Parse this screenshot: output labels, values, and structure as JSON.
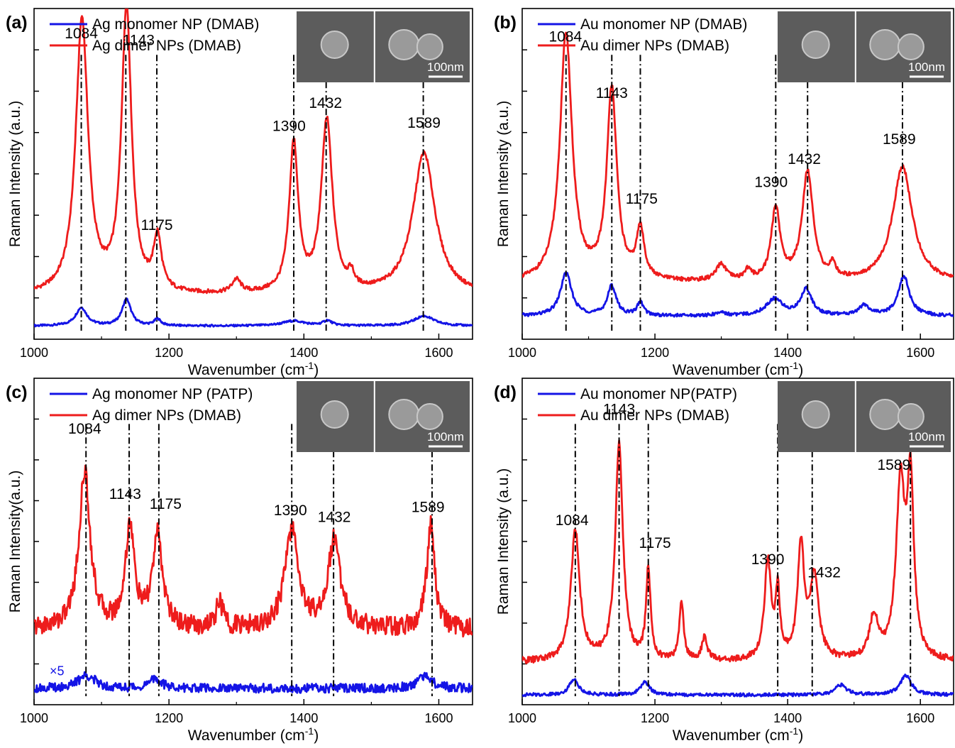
{
  "colors": {
    "monomer": "#1414e6",
    "dimer": "#ee1c1c",
    "axis": "#000000",
    "sem_bg": "#5c5c5c",
    "sem_particle": "#9a9a9a"
  },
  "chart_data": [
    {
      "panel": "(a)",
      "type": "line",
      "xlabel": "Wavenumber (cm-1)",
      "ylabel": "Raman Intensity (a.u.)",
      "xlim": [
        1000,
        1650
      ],
      "xticks": [
        "1000",
        "1200",
        "1400",
        "1600"
      ],
      "series": [
        {
          "name": "Ag monomer NP (DMAB)",
          "color": "#1414e6",
          "baseline": 0.04,
          "noise": 0.003,
          "peaks": [
            [
              1070,
              0.055,
              10
            ],
            [
              1137,
              0.08,
              8
            ],
            [
              1183,
              0.02,
              6
            ],
            [
              1385,
              0.015,
              20
            ],
            [
              1435,
              0.015,
              8
            ],
            [
              1578,
              0.03,
              18
            ]
          ]
        },
        {
          "name": "Ag dimer NPs (DMAB)",
          "color": "#ee1c1c",
          "baseline": 0.13,
          "noise": 0.006,
          "peaks": [
            [
              1071,
              0.83,
              11
            ],
            [
              1137,
              0.86,
              9
            ],
            [
              1183,
              0.16,
              7
            ],
            [
              1300,
              0.04,
              8
            ],
            [
              1385,
              0.45,
              8
            ],
            [
              1434,
              0.52,
              10
            ],
            [
              1470,
              0.04,
              5
            ],
            [
              1578,
              0.43,
              20
            ]
          ]
        }
      ],
      "peak_labels": [
        {
          "text": "1084",
          "x": 1070,
          "y": 0.91
        },
        {
          "text": "1143",
          "x": 1155,
          "y": 0.89
        },
        {
          "text": "1175",
          "x": 1182,
          "y": 0.33
        },
        {
          "text": "1390",
          "x": 1378,
          "y": 0.63
        },
        {
          "text": "1432",
          "x": 1432,
          "y": 0.7
        },
        {
          "text": "1589",
          "x": 1578,
          "y": 0.64
        }
      ],
      "dashed_lines": [
        1070,
        1136,
        1182,
        1385,
        1433,
        1577
      ],
      "sem": {
        "scale_label": "100nm"
      }
    },
    {
      "panel": "(b)",
      "type": "line",
      "xlabel": "Wavenumber (cm-1)",
      "ylabel": "Raman Intensity (a.u.)",
      "xlim": [
        1000,
        1650
      ],
      "xticks": [
        "1000",
        "1200",
        "1400",
        "1600"
      ],
      "series": [
        {
          "name": "Au monomer NP (DMAB)",
          "color": "#1414e6",
          "baseline": 0.07,
          "noise": 0.005,
          "peaks": [
            [
              1066,
              0.13,
              10
            ],
            [
              1135,
              0.09,
              8
            ],
            [
              1178,
              0.04,
              6
            ],
            [
              1300,
              0.01,
              8
            ],
            [
              1380,
              0.05,
              15
            ],
            [
              1428,
              0.08,
              10
            ],
            [
              1515,
              0.03,
              10
            ],
            [
              1575,
              0.12,
              10
            ]
          ]
        },
        {
          "name": "Au dimer NPs (DMAB)",
          "color": "#ee1c1c",
          "baseline": 0.17,
          "noise": 0.006,
          "peaks": [
            [
              1066,
              0.75,
              11
            ],
            [
              1135,
              0.58,
              9
            ],
            [
              1178,
              0.15,
              7
            ],
            [
              1300,
              0.05,
              9
            ],
            [
              1340,
              0.03,
              6
            ],
            [
              1382,
              0.22,
              8
            ],
            [
              1430,
              0.33,
              10
            ],
            [
              1468,
              0.04,
              5
            ],
            [
              1573,
              0.35,
              18
            ]
          ]
        }
      ],
      "peak_labels": [
        {
          "text": "1084",
          "x": 1065,
          "y": 0.9
        },
        {
          "text": "1143",
          "x": 1135,
          "y": 0.73
        },
        {
          "text": "1175",
          "x": 1180,
          "y": 0.41
        },
        {
          "text": "1390",
          "x": 1375,
          "y": 0.46
        },
        {
          "text": "1432",
          "x": 1425,
          "y": 0.53
        },
        {
          "text": "1589",
          "x": 1568,
          "y": 0.59
        }
      ],
      "dashed_lines": [
        1066,
        1135,
        1178,
        1382,
        1430,
        1573
      ],
      "sem": {
        "scale_label": "100nm"
      }
    },
    {
      "panel": "(c)",
      "type": "line",
      "xlabel": "Wavenumber (cm-1)",
      "ylabel": "Raman Intensity(a.u.)",
      "xlim": [
        1000,
        1650
      ],
      "xticks": [
        "1000",
        "1200",
        "1400",
        "1600"
      ],
      "multiplier_label": "×5",
      "series": [
        {
          "name": "Ag monomer NP (PATP)",
          "color": "#1414e6",
          "baseline": 0.05,
          "noise": 0.014,
          "peaks": [
            [
              1078,
              0.04,
              15
            ],
            [
              1180,
              0.03,
              10
            ],
            [
              1580,
              0.04,
              12
            ]
          ]
        },
        {
          "name": "Ag dimer NPs (DMAB)",
          "color": "#ee1c1c",
          "baseline": 0.23,
          "noise": 0.03,
          "peaks": [
            [
              1075,
              0.48,
              10
            ],
            [
              1142,
              0.31,
              8
            ],
            [
              1183,
              0.28,
              9
            ],
            [
              1275,
              0.08,
              6
            ],
            [
              1382,
              0.3,
              12
            ],
            [
              1445,
              0.27,
              11
            ],
            [
              1588,
              0.32,
              7
            ]
          ]
        }
      ],
      "peak_labels": [
        {
          "text": "1084",
          "x": 1075,
          "y": 0.83
        },
        {
          "text": "1143",
          "x": 1135,
          "y": 0.63
        },
        {
          "text": "1175",
          "x": 1195,
          "y": 0.6
        },
        {
          "text": "1390",
          "x": 1380,
          "y": 0.58
        },
        {
          "text": "1432",
          "x": 1445,
          "y": 0.56
        },
        {
          "text": "1589",
          "x": 1584,
          "y": 0.59
        }
      ],
      "dashed_lines": [
        1077,
        1141,
        1185,
        1382,
        1444,
        1590
      ],
      "sem": {
        "scale_label": "100nm"
      }
    },
    {
      "panel": "(d)",
      "type": "line",
      "xlabel": "Wavenumber (cm-1)",
      "ylabel": "Raman Intensity (a.u.)",
      "xlim": [
        1000,
        1650
      ],
      "xticks": [
        "1000",
        "1200",
        "1400",
        "1600"
      ],
      "series": [
        {
          "name": "Au monomer NP(PATP)",
          "color": "#1414e6",
          "baseline": 0.03,
          "noise": 0.005,
          "peaks": [
            [
              1078,
              0.05,
              8
            ],
            [
              1185,
              0.04,
              8
            ],
            [
              1480,
              0.03,
              10
            ],
            [
              1578,
              0.06,
              10
            ]
          ]
        },
        {
          "name": "Au dimer NPs (DMAB)",
          "color": "#ee1c1c",
          "baseline": 0.13,
          "noise": 0.01,
          "peaks": [
            [
              1080,
              0.4,
              8
            ],
            [
              1146,
              0.66,
              7
            ],
            [
              1190,
              0.28,
              4
            ],
            [
              1240,
              0.18,
              4
            ],
            [
              1275,
              0.07,
              5
            ],
            [
              1370,
              0.3,
              6
            ],
            [
              1385,
              0.2,
              4
            ],
            [
              1420,
              0.34,
              6
            ],
            [
              1440,
              0.25,
              8
            ],
            [
              1530,
              0.13,
              8
            ],
            [
              1570,
              0.52,
              8
            ],
            [
              1585,
              0.52,
              6
            ]
          ]
        }
      ],
      "peak_labels": [
        {
          "text": "1084",
          "x": 1075,
          "y": 0.55
        },
        {
          "text": "1143",
          "x": 1146,
          "y": 0.89
        },
        {
          "text": "1175",
          "x": 1200,
          "y": 0.48
        },
        {
          "text": "1390",
          "x": 1370,
          "y": 0.43
        },
        {
          "text": "1432",
          "x": 1455,
          "y": 0.39
        },
        {
          "text": "1589",
          "x": 1560,
          "y": 0.72
        }
      ],
      "dashed_lines": [
        1080,
        1146,
        1190,
        1385,
        1437,
        1585
      ],
      "sem": {
        "scale_label": "100nm"
      }
    }
  ]
}
